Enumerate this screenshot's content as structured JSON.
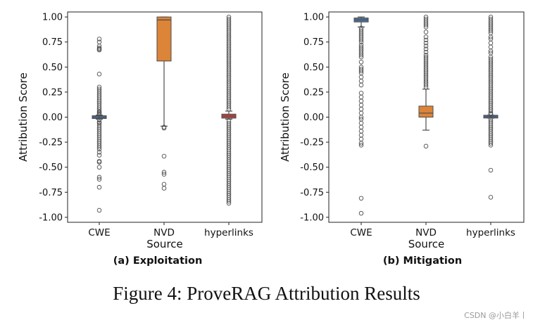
{
  "figure_caption": "Figure 4: ProveRAG Attribution Results",
  "watermark": "CSDN @小白羊丨",
  "colors": {
    "blue": "#4a76a0",
    "orange": "#dc8438",
    "red": "#c0443f",
    "line": "#4d4d4d",
    "flier": "#4d4d4d"
  },
  "chart_data": [
    {
      "type": "box",
      "subtitle": "(a) Exploitation",
      "xlabel": "Source",
      "ylabel": "Attribution Score",
      "ylim": [
        -1.05,
        1.05
      ],
      "yticks": [
        "-1.00",
        "-0.75",
        "-0.50",
        "-0.25",
        "0.00",
        "0.25",
        "0.50",
        "0.75",
        "1.00"
      ],
      "categories": [
        "CWE",
        "NVD",
        "hyperlinks"
      ],
      "boxes": [
        {
          "name": "CWE",
          "color": "blue",
          "whisker_low": -0.02,
          "q1": -0.01,
          "median": 0.0,
          "q3": 0.01,
          "whisker_high": 0.02,
          "fliers": [
            0.78,
            0.75,
            0.71,
            0.69,
            0.68,
            0.67,
            0.43,
            0.3,
            0.28,
            0.26,
            0.24,
            0.22,
            0.2,
            0.18,
            0.16,
            0.14,
            0.12,
            0.1,
            0.08,
            0.06,
            0.05,
            0.04,
            0.03,
            -0.03,
            -0.05,
            -0.06,
            -0.08,
            -0.1,
            -0.12,
            -0.14,
            -0.16,
            -0.18,
            -0.2,
            -0.22,
            -0.24,
            -0.26,
            -0.28,
            -0.3,
            -0.32,
            -0.35,
            -0.38,
            -0.44,
            -0.45,
            -0.5,
            -0.6,
            -0.62,
            -0.7,
            -0.93
          ]
        },
        {
          "name": "NVD",
          "color": "orange",
          "whisker_low": -0.09,
          "q1": 0.56,
          "median": 0.97,
          "q3": 1.0,
          "whisker_high": 1.0,
          "fliers": [
            -0.1,
            -0.11,
            -0.39,
            -0.55,
            -0.57,
            -0.67,
            -0.71
          ]
        },
        {
          "name": "hyperlinks",
          "color": "red",
          "whisker_low": -0.02,
          "q1": -0.01,
          "median": 0.01,
          "q3": 0.03,
          "whisker_high": 0.06,
          "fliers": [
            1.0,
            0.98,
            0.96,
            0.94,
            0.92,
            0.9,
            0.88,
            0.86,
            0.84,
            0.82,
            0.8,
            0.78,
            0.76,
            0.74,
            0.72,
            0.7,
            0.68,
            0.66,
            0.64,
            0.62,
            0.6,
            0.58,
            0.56,
            0.54,
            0.52,
            0.5,
            0.48,
            0.46,
            0.44,
            0.42,
            0.4,
            0.38,
            0.36,
            0.34,
            0.32,
            0.3,
            0.28,
            0.26,
            0.24,
            0.22,
            0.2,
            0.18,
            0.16,
            0.14,
            0.12,
            0.1,
            0.08,
            -0.04,
            -0.06,
            -0.08,
            -0.1,
            -0.12,
            -0.14,
            -0.16,
            -0.18,
            -0.2,
            -0.22,
            -0.24,
            -0.26,
            -0.28,
            -0.3,
            -0.32,
            -0.34,
            -0.36,
            -0.38,
            -0.4,
            -0.42,
            -0.44,
            -0.46,
            -0.48,
            -0.5,
            -0.52,
            -0.54,
            -0.56,
            -0.58,
            -0.6,
            -0.62,
            -0.64,
            -0.66,
            -0.68,
            -0.7,
            -0.72,
            -0.74,
            -0.76,
            -0.78,
            -0.8,
            -0.82,
            -0.84,
            -0.86
          ]
        }
      ]
    },
    {
      "type": "box",
      "subtitle": "(b) Mitigation",
      "xlabel": "Source",
      "ylabel": "Attribution Score",
      "ylim": [
        -1.05,
        1.05
      ],
      "yticks": [
        "-1.00",
        "-0.75",
        "-0.50",
        "-0.25",
        "0.00",
        "0.25",
        "0.50",
        "0.75",
        "1.00"
      ],
      "categories": [
        "CWE",
        "NVD",
        "hyperlinks"
      ],
      "boxes": [
        {
          "name": "CWE",
          "color": "blue",
          "whisker_low": 0.9,
          "q1": 0.95,
          "median": 0.97,
          "q3": 0.99,
          "whisker_high": 1.0,
          "fliers": [
            0.89,
            0.87,
            0.85,
            0.83,
            0.81,
            0.79,
            0.77,
            0.75,
            0.72,
            0.7,
            0.68,
            0.66,
            0.64,
            0.62,
            0.6,
            0.55,
            0.5,
            0.48,
            0.46,
            0.44,
            0.4,
            0.36,
            0.32,
            0.24,
            0.2,
            0.16,
            0.12,
            0.08,
            0.04,
            0.0,
            -0.02,
            -0.06,
            -0.1,
            -0.14,
            -0.18,
            -0.22,
            -0.26,
            -0.28,
            -0.81,
            -0.96
          ]
        },
        {
          "name": "NVD",
          "color": "orange",
          "whisker_low": -0.13,
          "q1": 0.0,
          "median": 0.04,
          "q3": 0.11,
          "whisker_high": 0.28,
          "fliers": [
            1.0,
            0.98,
            0.96,
            0.94,
            0.92,
            0.9,
            0.85,
            0.8,
            0.77,
            0.74,
            0.71,
            0.68,
            0.65,
            0.62,
            0.6,
            0.58,
            0.56,
            0.54,
            0.52,
            0.5,
            0.48,
            0.46,
            0.44,
            0.42,
            0.4,
            0.38,
            0.36,
            0.34,
            0.32,
            0.3,
            -0.29
          ]
        },
        {
          "name": "hyperlinks",
          "color": "blue",
          "whisker_low": -0.01,
          "q1": 0.0,
          "median": 0.005,
          "q3": 0.01,
          "whisker_high": 0.02,
          "fliers": [
            1.0,
            0.98,
            0.96,
            0.94,
            0.92,
            0.9,
            0.88,
            0.86,
            0.84,
            0.8,
            0.78,
            0.74,
            0.7,
            0.66,
            0.64,
            0.6,
            0.58,
            0.56,
            0.54,
            0.52,
            0.5,
            0.48,
            0.46,
            0.44,
            0.42,
            0.4,
            0.38,
            0.36,
            0.34,
            0.32,
            0.3,
            0.28,
            0.26,
            0.24,
            0.22,
            0.2,
            0.18,
            0.16,
            0.14,
            0.12,
            0.1,
            0.08,
            0.06,
            0.04,
            0.03,
            -0.02,
            -0.04,
            -0.06,
            -0.08,
            -0.1,
            -0.12,
            -0.14,
            -0.16,
            -0.18,
            -0.2,
            -0.22,
            -0.24,
            -0.26,
            -0.28,
            -0.53,
            -0.8
          ]
        }
      ]
    }
  ]
}
